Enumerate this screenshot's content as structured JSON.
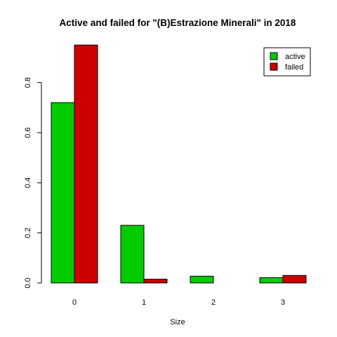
{
  "chart_data": {
    "type": "bar",
    "title": "Active and failed for \"(B)Estrazione Minerali\" in 2018",
    "xlabel": "Size",
    "ylabel": "",
    "categories": [
      "0",
      "1",
      "2",
      "3"
    ],
    "series": [
      {
        "name": "active",
        "color": "#00cc00",
        "values": [
          0.72,
          0.23,
          0.027,
          0.021
        ]
      },
      {
        "name": "failed",
        "color": "#cc0000",
        "values": [
          0.95,
          0.015,
          0.0,
          0.03
        ]
      }
    ],
    "yticks": [
      "0.0",
      "0.2",
      "0.4",
      "0.6",
      "0.8"
    ],
    "ylim": [
      0,
      0.97
    ],
    "legend_position": "top-right",
    "grid": false
  }
}
